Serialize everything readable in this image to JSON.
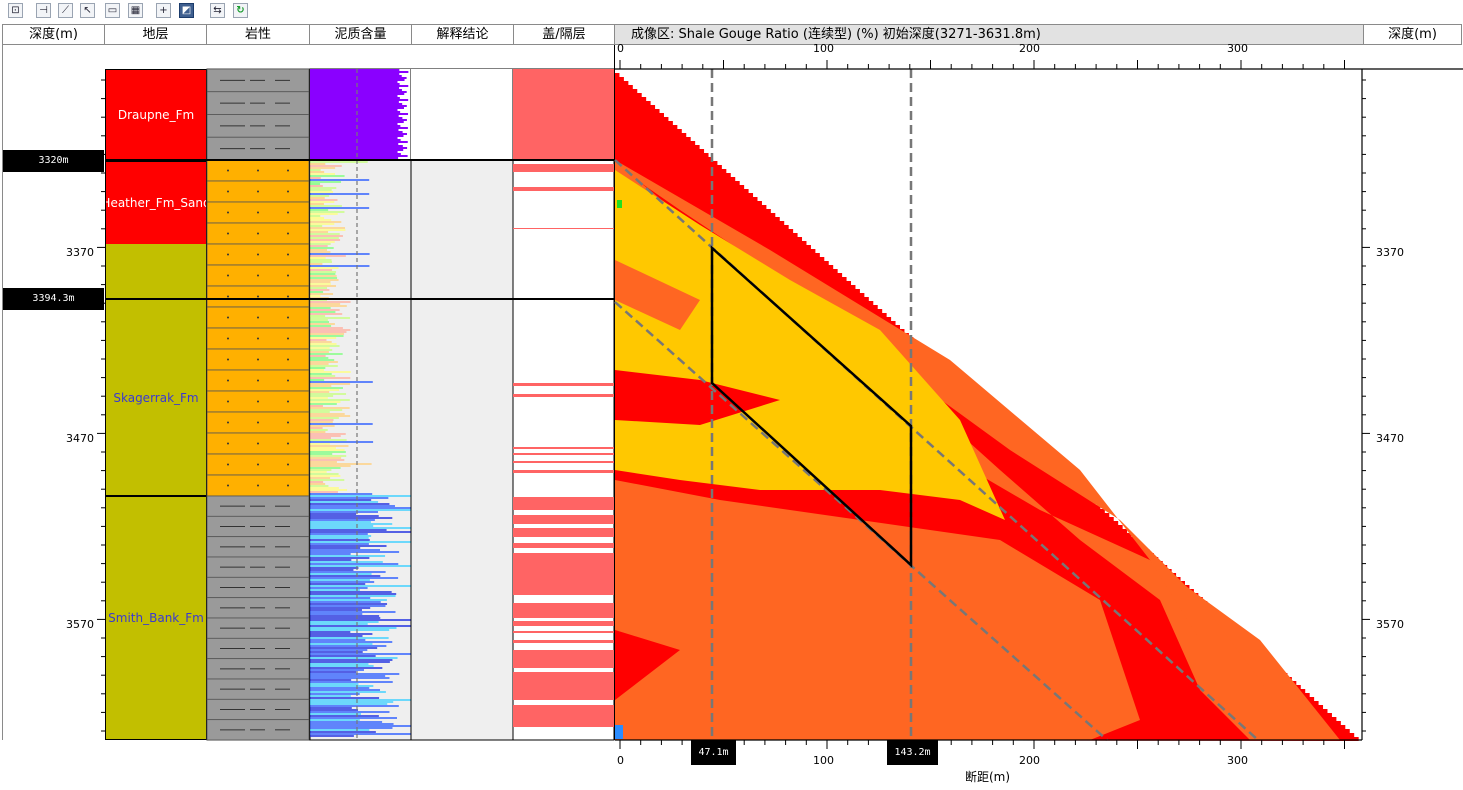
{
  "toolbar": {
    "buttons": [
      {
        "icon": "zoom-fit-icon",
        "glyph": "⊡"
      },
      {
        "icon": "well-tie-icon",
        "glyph": "⊣"
      },
      {
        "icon": "fault-icon",
        "glyph": "⟋"
      },
      {
        "icon": "cursor-tool-icon",
        "glyph": "↖"
      },
      {
        "icon": "layer-icon",
        "glyph": "▭"
      },
      {
        "icon": "grid-icon",
        "glyph": "▦"
      },
      {
        "icon": "crosshair-icon",
        "glyph": "+"
      },
      {
        "icon": "section-view-icon",
        "glyph": "◩"
      },
      {
        "icon": "swap-icon",
        "glyph": "⇆"
      },
      {
        "icon": "refresh-icon",
        "glyph": "↻"
      }
    ]
  },
  "headers": {
    "depth_left": "深度(m)",
    "formation": "地层",
    "lithology": "岩性",
    "shale_content": "泥质含量",
    "interpretation": "解释结论",
    "seal_layer": "盖/隔层",
    "imaging_title": "成像区: Shale Gouge Ratio (连续型) (%)  初始深度(3271-3631.8m)",
    "depth_right": "深度(m)"
  },
  "depth_axis": {
    "ticks": [
      "3370",
      "3470",
      "3570"
    ],
    "markers": [
      "3320m",
      "3394.3m"
    ]
  },
  "formations": [
    {
      "name": "Draupne_Fm",
      "color": "#ff0000",
      "text_color": "#ffffff"
    },
    {
      "name": "Heather_Fm_Sand",
      "color": "#ff0000",
      "text_color": "#ffffff"
    },
    {
      "name": "Skagerrak_Fm",
      "color": "#c2bf00",
      "text_color": "#3a3ad0"
    },
    {
      "name": "Smith_Bank_Fm",
      "color": "#c2bf00",
      "text_color": "#3a3ad0"
    }
  ],
  "distance_axis": {
    "ticks": [
      "0",
      "100",
      "200",
      "300"
    ],
    "label": "断距(m)",
    "markers": [
      "47.1m",
      "143.2m"
    ]
  },
  "colors": {
    "sgr_red": "#ff0000",
    "sgr_orange": "#ff6622",
    "sgr_yellow": "#ffc800",
    "shale": "#9a9a9a",
    "sand": "#ffb000",
    "seal": "#ff6464",
    "shale_curve": "#8a00ff"
  }
}
